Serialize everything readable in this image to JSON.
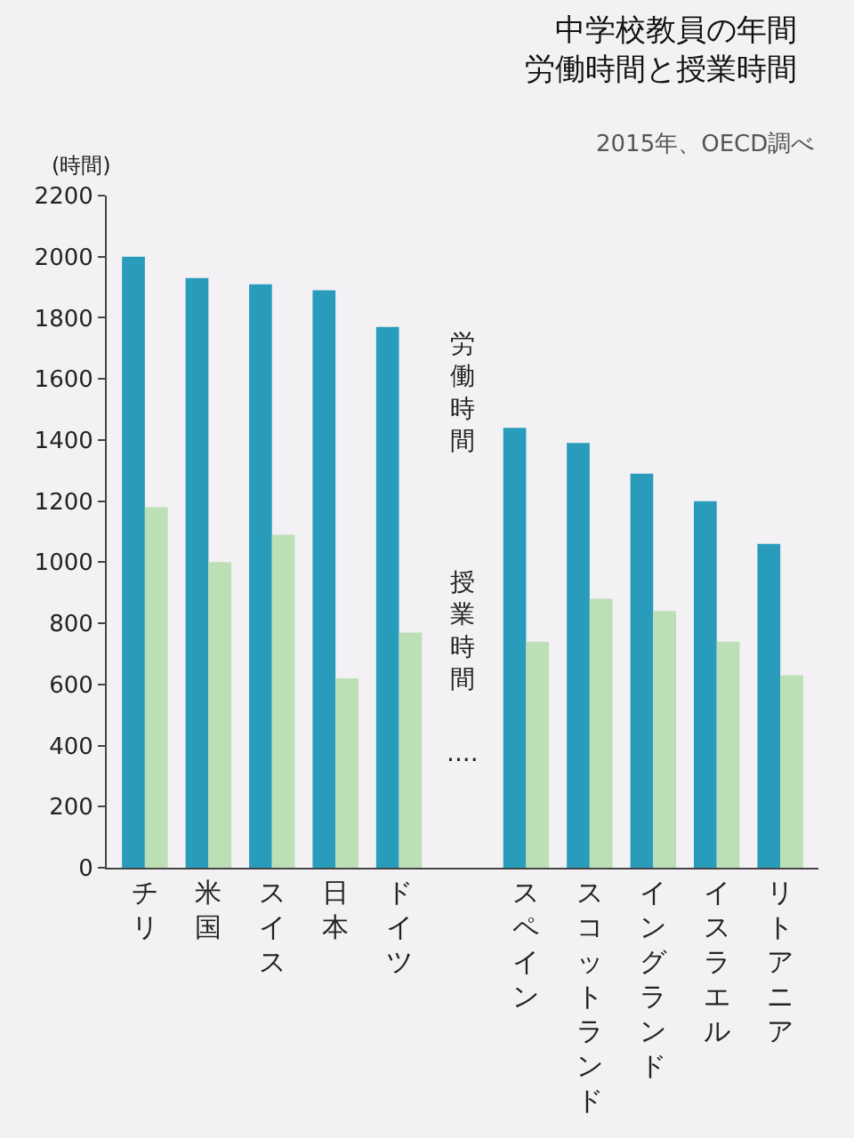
{
  "chart_data": {
    "type": "bar",
    "title": "中学校教員の年間労働時間と授業時間",
    "subtitle": "2015年、OECD調べ",
    "ylabel": "(時間)",
    "categories": [
      "チリ",
      "米国",
      "スイス",
      "日本",
      "ドイツ",
      null,
      "スペイン",
      "スコットランド",
      "イングランド",
      "イスラエル",
      "リトアニア"
    ],
    "series": [
      {
        "name": "労働時間",
        "color": "#2a9cbb",
        "values": [
          2000,
          1930,
          1910,
          1890,
          1770,
          null,
          1440,
          1390,
          1290,
          1200,
          1060
        ]
      },
      {
        "name": "授業時間",
        "color": "#bddfb6",
        "values": [
          1180,
          1000,
          1090,
          620,
          770,
          null,
          740,
          880,
          840,
          740,
          630
        ]
      }
    ],
    "ylim": [
      0,
      2200
    ],
    "yticks": [
      0,
      200,
      400,
      600,
      800,
      1000,
      1200,
      1400,
      1600,
      1800,
      2000,
      2200
    ],
    "grid": false,
    "legend": false,
    "annotations": [
      "····"
    ]
  }
}
